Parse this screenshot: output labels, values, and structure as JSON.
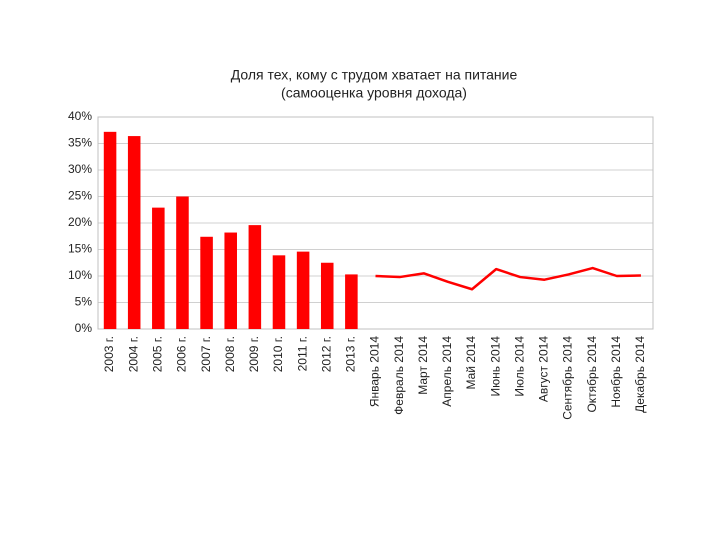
{
  "chart_data": {
    "type": "combo",
    "title": [
      "Доля тех, кому с трудом хватает на питание",
      "(самооценка уровня дохода)"
    ],
    "categories": [
      "2003 г.",
      "2004 г.",
      "2005 г.",
      "2006 г.",
      "2007 г.",
      "2008 г.",
      "2009 г.",
      "2010 г.",
      "2011 г.",
      "2012 г.",
      "2013 г.",
      "Январь 2014",
      "Февраль 2014",
      "Март 2014",
      "Апрель 2014",
      "Май 2014",
      "Июнь 2014",
      "Июль 2014",
      "Август 2014",
      "Сентябрь 2014",
      "Октябрь 2014",
      "Ноябрь 2014",
      "Декабрь 2014"
    ],
    "series": [
      {
        "type": "bar",
        "color": "#ff0000",
        "values": [
          37.2,
          36.4,
          22.9,
          25.0,
          17.4,
          18.2,
          19.6,
          13.9,
          14.6,
          12.5,
          10.3,
          null,
          null,
          null,
          null,
          null,
          null,
          null,
          null,
          null,
          null,
          null,
          null
        ]
      },
      {
        "type": "line",
        "color": "#ff0000",
        "values": [
          null,
          null,
          null,
          null,
          null,
          null,
          null,
          null,
          null,
          null,
          null,
          10.0,
          9.8,
          10.5,
          8.9,
          7.5,
          11.3,
          9.8,
          9.3,
          10.3,
          11.5,
          10.0,
          10.1
        ]
      }
    ],
    "ylim": [
      0,
      40
    ],
    "yticks": [
      {
        "value": 0,
        "label": "0%"
      },
      {
        "value": 5,
        "label": "5%"
      },
      {
        "value": 10,
        "label": "10%"
      },
      {
        "value": 15,
        "label": "15%"
      },
      {
        "value": 20,
        "label": "20%"
      },
      {
        "value": 25,
        "label": "25%"
      },
      {
        "value": 30,
        "label": "30%"
      },
      {
        "value": 35,
        "label": "35%"
      },
      {
        "value": 40,
        "label": "40%"
      }
    ],
    "grid": true
  }
}
